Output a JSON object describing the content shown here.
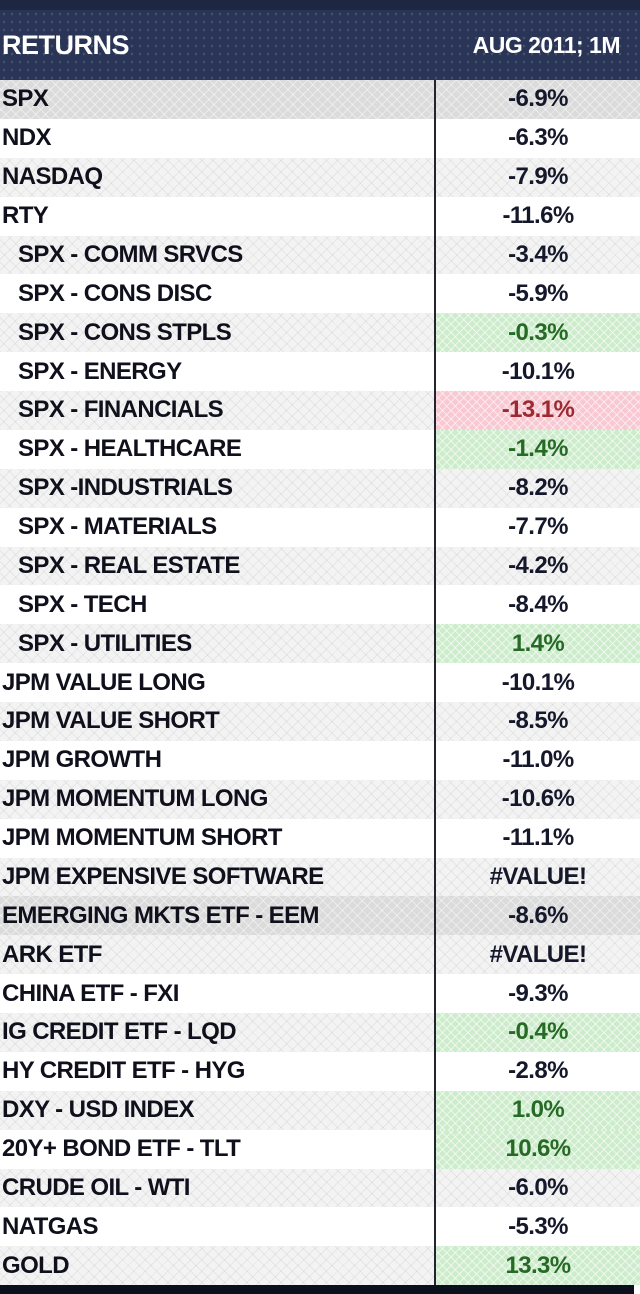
{
  "header": {
    "title": "RETURNS",
    "period": "AUG 2011; 1M"
  },
  "colors": {
    "header_navy": "#2a3457",
    "header_top_strip": "#1e2742",
    "row_solid_gray": "#dbdbdb",
    "row_hatch_gray": "#f3f3f3",
    "good_bg": "#cdeccc",
    "good_text": "#266a26",
    "bad_bg": "#f8c9d2",
    "bad_text": "#9d2a33",
    "divider": "#242430"
  },
  "table": {
    "rows": [
      {
        "label": "SPX",
        "value": "-6.9%",
        "indent": false,
        "row_bg": "solid",
        "tone": "neutral"
      },
      {
        "label": "NDX",
        "value": "-6.3%",
        "indent": false,
        "row_bg": "white",
        "tone": "neutral"
      },
      {
        "label": "NASDAQ",
        "value": "-7.9%",
        "indent": false,
        "row_bg": "hatch",
        "tone": "neutral"
      },
      {
        "label": "RTY",
        "value": "-11.6%",
        "indent": false,
        "row_bg": "white",
        "tone": "neutral"
      },
      {
        "label": "SPX - COMM SRVCS",
        "value": "-3.4%",
        "indent": true,
        "row_bg": "hatch",
        "tone": "neutral"
      },
      {
        "label": "SPX - CONS DISC",
        "value": "-5.9%",
        "indent": true,
        "row_bg": "white",
        "tone": "neutral"
      },
      {
        "label": "SPX - CONS STPLS",
        "value": "-0.3%",
        "indent": true,
        "row_bg": "hatch",
        "tone": "good"
      },
      {
        "label": "SPX - ENERGY",
        "value": "-10.1%",
        "indent": true,
        "row_bg": "white",
        "tone": "neutral"
      },
      {
        "label": "SPX - FINANCIALS",
        "value": "-13.1%",
        "indent": true,
        "row_bg": "hatch",
        "tone": "bad"
      },
      {
        "label": "SPX - HEALTHCARE",
        "value": "-1.4%",
        "indent": true,
        "row_bg": "white",
        "tone": "good"
      },
      {
        "label": "SPX -INDUSTRIALS",
        "value": "-8.2%",
        "indent": true,
        "row_bg": "hatch",
        "tone": "neutral"
      },
      {
        "label": "SPX - MATERIALS",
        "value": "-7.7%",
        "indent": true,
        "row_bg": "white",
        "tone": "neutral"
      },
      {
        "label": "SPX - REAL ESTATE",
        "value": "-4.2%",
        "indent": true,
        "row_bg": "hatch",
        "tone": "neutral"
      },
      {
        "label": "SPX - TECH",
        "value": "-8.4%",
        "indent": true,
        "row_bg": "white",
        "tone": "neutral"
      },
      {
        "label": "SPX - UTILITIES",
        "value": "1.4%",
        "indent": true,
        "row_bg": "hatch",
        "tone": "good"
      },
      {
        "label": "JPM VALUE LONG",
        "value": "-10.1%",
        "indent": false,
        "row_bg": "white",
        "tone": "neutral"
      },
      {
        "label": "JPM VALUE SHORT",
        "value": "-8.5%",
        "indent": false,
        "row_bg": "hatch",
        "tone": "neutral"
      },
      {
        "label": "JPM GROWTH",
        "value": "-11.0%",
        "indent": false,
        "row_bg": "white",
        "tone": "neutral"
      },
      {
        "label": "JPM MOMENTUM LONG",
        "value": "-10.6%",
        "indent": false,
        "row_bg": "hatch",
        "tone": "neutral"
      },
      {
        "label": "JPM MOMENTUM SHORT",
        "value": "-11.1%",
        "indent": false,
        "row_bg": "white",
        "tone": "neutral"
      },
      {
        "label": "JPM EXPENSIVE SOFTWARE",
        "value": "#VALUE!",
        "indent": false,
        "row_bg": "hatch",
        "tone": "neutral"
      },
      {
        "label": "EMERGING MKTS ETF - EEM",
        "value": "-8.6%",
        "indent": false,
        "row_bg": "solid",
        "tone": "neutral"
      },
      {
        "label": "ARK ETF",
        "value": "#VALUE!",
        "indent": false,
        "row_bg": "hatch",
        "tone": "neutral"
      },
      {
        "label": "CHINA ETF - FXI",
        "value": "-9.3%",
        "indent": false,
        "row_bg": "white",
        "tone": "neutral"
      },
      {
        "label": "IG CREDIT ETF - LQD",
        "value": "-0.4%",
        "indent": false,
        "row_bg": "hatch",
        "tone": "good"
      },
      {
        "label": "HY CREDIT ETF - HYG",
        "value": "-2.8%",
        "indent": false,
        "row_bg": "white",
        "tone": "neutral"
      },
      {
        "label": "DXY - USD INDEX",
        "value": "1.0%",
        "indent": false,
        "row_bg": "hatch",
        "tone": "good"
      },
      {
        "label": "20Y+ BOND ETF - TLT",
        "value": "10.6%",
        "indent": false,
        "row_bg": "white",
        "tone": "good"
      },
      {
        "label": "CRUDE OIL - WTI",
        "value": "-6.0%",
        "indent": false,
        "row_bg": "hatch",
        "tone": "neutral"
      },
      {
        "label": "NATGAS",
        "value": "-5.3%",
        "indent": false,
        "row_bg": "white",
        "tone": "neutral"
      },
      {
        "label": "GOLD",
        "value": "13.3%",
        "indent": false,
        "row_bg": "hatch",
        "tone": "good"
      }
    ]
  }
}
